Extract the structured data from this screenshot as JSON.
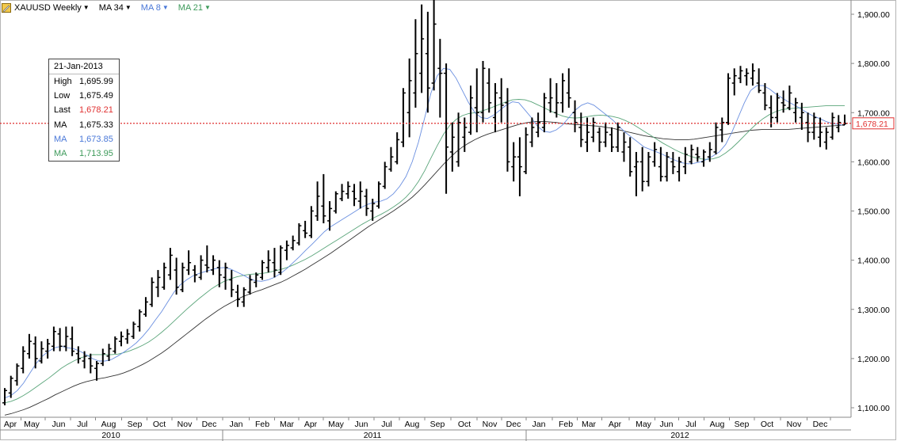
{
  "toolbar": {
    "symbol": "XAUUSD Weekly",
    "ma1": "MA 34",
    "ma2": "MA 8",
    "ma3": "MA 21",
    "logo_icon": "pencil-chart-icon",
    "dropdown_icon": "caret-down-icon"
  },
  "colors": {
    "price_bars": "#000000",
    "ma34": "#333333",
    "ma8": "#6a8fe0",
    "ma21": "#5aa57a",
    "last_price": "#e03030",
    "ma8_text": "#4a78d8",
    "ma21_text": "#3d9a5a"
  },
  "info_box": {
    "date": "21-Jan-2013",
    "rows": [
      {
        "label": "High",
        "value": "1,695.99"
      },
      {
        "label": "Low",
        "value": "1,675.49"
      },
      {
        "label": "Last",
        "value": "1,678.21"
      },
      {
        "label": "MA",
        "value": "1,675.33"
      },
      {
        "label": "MA",
        "value": "1,673.85"
      },
      {
        "label": "MA",
        "value": "1,713.95"
      }
    ]
  },
  "chart_data": {
    "type": "ohlc",
    "title": "XAUUSD Weekly",
    "last_price_label": "1,678.21",
    "y_ticks": [
      "1,100.00",
      "1,200.00",
      "1,300.00",
      "1,400.00",
      "1,500.00",
      "1,600.00",
      "1,700.00",
      "1,800.00",
      "1,900.00"
    ],
    "y_tick_values": [
      1100,
      1200,
      1300,
      1400,
      1500,
      1600,
      1700,
      1800,
      1900
    ],
    "ylim": [
      1090,
      1930
    ],
    "last_price": 1678.21,
    "months": [
      "Apr",
      "May",
      "Jun",
      "Jul",
      "Aug",
      "Sep",
      "Oct",
      "Nov",
      "Dec",
      "Jan",
      "Feb",
      "Mar",
      "Apr",
      "May",
      "Jun",
      "Jul",
      "Aug",
      "Sep",
      "Oct",
      "Nov",
      "Dec",
      "Jan",
      "Feb",
      "Mar",
      "Apr",
      "May",
      "Jun",
      "Jul",
      "Aug",
      "Sep",
      "Oct",
      "Nov",
      "Dec"
    ],
    "years": [
      "2010",
      "2011",
      "2012"
    ],
    "bars": [
      [
        1110,
        1140,
        1105,
        1135
      ],
      [
        1130,
        1165,
        1120,
        1160
      ],
      [
        1155,
        1190,
        1145,
        1185
      ],
      [
        1180,
        1225,
        1170,
        1215
      ],
      [
        1210,
        1250,
        1200,
        1235
      ],
      [
        1230,
        1245,
        1180,
        1200
      ],
      [
        1195,
        1235,
        1190,
        1220
      ],
      [
        1215,
        1240,
        1200,
        1230
      ],
      [
        1225,
        1265,
        1215,
        1255
      ],
      [
        1250,
        1262,
        1215,
        1225
      ],
      [
        1225,
        1265,
        1215,
        1245
      ],
      [
        1240,
        1265,
        1205,
        1215
      ],
      [
        1210,
        1225,
        1190,
        1200
      ],
      [
        1195,
        1215,
        1180,
        1205
      ],
      [
        1200,
        1210,
        1170,
        1185
      ],
      [
        1180,
        1195,
        1155,
        1190
      ],
      [
        1190,
        1220,
        1185,
        1210
      ],
      [
        1205,
        1230,
        1195,
        1220
      ],
      [
        1215,
        1245,
        1210,
        1240
      ],
      [
        1235,
        1255,
        1225,
        1245
      ],
      [
        1240,
        1260,
        1230,
        1250
      ],
      [
        1245,
        1275,
        1240,
        1270
      ],
      [
        1265,
        1300,
        1255,
        1295
      ],
      [
        1290,
        1325,
        1285,
        1315
      ],
      [
        1310,
        1365,
        1305,
        1355
      ],
      [
        1345,
        1380,
        1325,
        1365
      ],
      [
        1345,
        1395,
        1340,
        1385
      ],
      [
        1370,
        1425,
        1360,
        1410
      ],
      [
        1380,
        1405,
        1330,
        1345
      ],
      [
        1340,
        1395,
        1335,
        1385
      ],
      [
        1380,
        1420,
        1370,
        1395
      ],
      [
        1380,
        1390,
        1355,
        1370
      ],
      [
        1365,
        1410,
        1360,
        1400
      ],
      [
        1390,
        1430,
        1375,
        1385
      ],
      [
        1380,
        1410,
        1370,
        1400
      ],
      [
        1385,
        1400,
        1345,
        1370
      ],
      [
        1365,
        1395,
        1340,
        1385
      ],
      [
        1360,
        1380,
        1325,
        1340
      ],
      [
        1335,
        1350,
        1305,
        1320
      ],
      [
        1315,
        1345,
        1305,
        1340
      ],
      [
        1335,
        1370,
        1330,
        1360
      ],
      [
        1355,
        1375,
        1345,
        1370
      ],
      [
        1365,
        1400,
        1360,
        1395
      ],
      [
        1385,
        1420,
        1375,
        1400
      ],
      [
        1395,
        1425,
        1365,
        1380
      ],
      [
        1375,
        1430,
        1370,
        1425
      ],
      [
        1420,
        1440,
        1400,
        1430
      ],
      [
        1425,
        1450,
        1420,
        1440
      ],
      [
        1435,
        1475,
        1430,
        1470
      ],
      [
        1460,
        1480,
        1445,
        1455
      ],
      [
        1450,
        1510,
        1445,
        1500
      ],
      [
        1490,
        1560,
        1480,
        1530
      ],
      [
        1510,
        1575,
        1475,
        1490
      ],
      [
        1480,
        1520,
        1460,
        1505
      ],
      [
        1500,
        1540,
        1495,
        1535
      ],
      [
        1525,
        1555,
        1520,
        1540
      ],
      [
        1535,
        1560,
        1525,
        1550
      ],
      [
        1540,
        1555,
        1510,
        1525
      ],
      [
        1520,
        1560,
        1505,
        1540
      ],
      [
        1530,
        1545,
        1490,
        1505
      ],
      [
        1500,
        1525,
        1480,
        1515
      ],
      [
        1510,
        1560,
        1505,
        1555
      ],
      [
        1550,
        1600,
        1545,
        1590
      ],
      [
        1585,
        1630,
        1580,
        1610
      ],
      [
        1600,
        1660,
        1595,
        1645
      ],
      [
        1640,
        1750,
        1630,
        1740
      ],
      [
        1700,
        1810,
        1650,
        1765
      ],
      [
        1740,
        1890,
        1710,
        1820
      ],
      [
        1780,
        1920,
        1740,
        1850
      ],
      [
        1820,
        1905,
        1700,
        1750
      ],
      [
        1760,
        1930,
        1745,
        1880
      ],
      [
        1790,
        1850,
        1690,
        1780
      ],
      [
        1780,
        1800,
        1535,
        1630
      ],
      [
        1620,
        1680,
        1580,
        1650
      ],
      [
        1600,
        1700,
        1590,
        1680
      ],
      [
        1650,
        1690,
        1620,
        1670
      ],
      [
        1660,
        1755,
        1655,
        1730
      ],
      [
        1710,
        1790,
        1660,
        1700
      ],
      [
        1700,
        1805,
        1680,
        1790
      ],
      [
        1760,
        1790,
        1700,
        1720
      ],
      [
        1690,
        1760,
        1660,
        1740
      ],
      [
        1730,
        1770,
        1680,
        1715
      ],
      [
        1720,
        1750,
        1580,
        1600
      ],
      [
        1590,
        1640,
        1560,
        1610
      ],
      [
        1610,
        1650,
        1530,
        1590
      ],
      [
        1580,
        1670,
        1575,
        1655
      ],
      [
        1640,
        1690,
        1630,
        1670
      ],
      [
        1660,
        1700,
        1650,
        1680
      ],
      [
        1670,
        1740,
        1660,
        1730
      ],
      [
        1720,
        1770,
        1700,
        1730
      ],
      [
        1700,
        1760,
        1690,
        1720
      ],
      [
        1720,
        1780,
        1700,
        1765
      ],
      [
        1740,
        1790,
        1710,
        1730
      ],
      [
        1700,
        1725,
        1660,
        1680
      ],
      [
        1670,
        1700,
        1630,
        1645
      ],
      [
        1640,
        1690,
        1620,
        1660
      ],
      [
        1650,
        1690,
        1640,
        1680
      ],
      [
        1660,
        1670,
        1620,
        1640
      ],
      [
        1640,
        1680,
        1630,
        1660
      ],
      [
        1655,
        1670,
        1620,
        1630
      ],
      [
        1630,
        1680,
        1620,
        1670
      ],
      [
        1620,
        1660,
        1600,
        1640
      ],
      [
        1630,
        1650,
        1570,
        1580
      ],
      [
        1590,
        1620,
        1530,
        1600
      ],
      [
        1600,
        1630,
        1540,
        1560
      ],
      [
        1560,
        1620,
        1550,
        1610
      ],
      [
        1600,
        1640,
        1590,
        1625
      ],
      [
        1590,
        1630,
        1560,
        1570
      ],
      [
        1570,
        1620,
        1560,
        1610
      ],
      [
        1600,
        1620,
        1575,
        1590
      ],
      [
        1580,
        1610,
        1560,
        1600
      ],
      [
        1590,
        1630,
        1575,
        1615
      ],
      [
        1600,
        1635,
        1595,
        1625
      ],
      [
        1615,
        1630,
        1600,
        1610
      ],
      [
        1600,
        1625,
        1590,
        1620
      ],
      [
        1610,
        1640,
        1600,
        1625
      ],
      [
        1620,
        1680,
        1615,
        1670
      ],
      [
        1665,
        1690,
        1640,
        1680
      ],
      [
        1680,
        1780,
        1675,
        1770
      ],
      [
        1760,
        1790,
        1735,
        1775
      ],
      [
        1770,
        1795,
        1760,
        1785
      ],
      [
        1775,
        1790,
        1755,
        1780
      ],
      [
        1770,
        1800,
        1755,
        1785
      ],
      [
        1760,
        1790,
        1740,
        1745
      ],
      [
        1740,
        1760,
        1705,
        1715
      ],
      [
        1710,
        1735,
        1670,
        1690
      ],
      [
        1690,
        1740,
        1680,
        1730
      ],
      [
        1720,
        1745,
        1700,
        1715
      ],
      [
        1710,
        1755,
        1705,
        1740
      ],
      [
        1700,
        1730,
        1680,
        1720
      ],
      [
        1690,
        1720,
        1665,
        1700
      ],
      [
        1680,
        1700,
        1640,
        1660
      ],
      [
        1660,
        1700,
        1645,
        1690
      ],
      [
        1650,
        1690,
        1630,
        1660
      ],
      [
        1640,
        1670,
        1625,
        1660
      ],
      [
        1650,
        1700,
        1645,
        1690
      ],
      [
        1670,
        1695,
        1660,
        1680
      ],
      [
        1675,
        1696,
        1675,
        1678
      ]
    ],
    "ma8": [
      1120,
      1125,
      1135,
      1150,
      1170,
      1190,
      1205,
      1215,
      1222,
      1225,
      1222,
      1220,
      1215,
      1208,
      1200,
      1195,
      1195,
      1198,
      1205,
      1213,
      1222,
      1232,
      1245,
      1260,
      1278,
      1295,
      1315,
      1335,
      1350,
      1360,
      1368,
      1373,
      1377,
      1381,
      1384,
      1385,
      1382,
      1376,
      1370,
      1363,
      1358,
      1357,
      1360,
      1365,
      1373,
      1383,
      1395,
      1407,
      1420,
      1432,
      1445,
      1458,
      1468,
      1476,
      1484,
      1492,
      1500,
      1508,
      1514,
      1518,
      1520,
      1525,
      1535,
      1550,
      1570,
      1600,
      1640,
      1690,
      1740,
      1775,
      1790,
      1788,
      1770,
      1745,
      1720,
      1700,
      1690,
      1688,
      1695,
      1705,
      1715,
      1722,
      1720,
      1705,
      1690,
      1672,
      1662,
      1660,
      1665,
      1675,
      1690,
      1705,
      1715,
      1720,
      1715,
      1705,
      1695,
      1685,
      1672,
      1660,
      1650,
      1640,
      1630,
      1625,
      1620,
      1615,
      1608,
      1603,
      1598,
      1596,
      1597,
      1600,
      1605,
      1612,
      1620,
      1635,
      1660,
      1690,
      1720,
      1745,
      1755,
      1755,
      1748,
      1738,
      1730,
      1722,
      1715,
      1708,
      1700,
      1693,
      1688,
      1682,
      1678,
      1676,
      1674
    ],
    "ma21": [
      1110,
      1113,
      1118,
      1125,
      1133,
      1142,
      1151,
      1160,
      1170,
      1180,
      1188,
      1195,
      1201,
      1205,
      1208,
      1208,
      1208,
      1208,
      1209,
      1212,
      1216,
      1221,
      1227,
      1234,
      1243,
      1253,
      1264,
      1276,
      1288,
      1300,
      1311,
      1322,
      1332,
      1342,
      1350,
      1357,
      1362,
      1366,
      1369,
      1371,
      1372,
      1373,
      1375,
      1378,
      1381,
      1385,
      1390,
      1396,
      1402,
      1409,
      1417,
      1425,
      1433,
      1441,
      1449,
      1457,
      1465,
      1473,
      1480,
      1487,
      1493,
      1500,
      1508,
      1517,
      1528,
      1542,
      1560,
      1582,
      1608,
      1633,
      1656,
      1674,
      1686,
      1694,
      1698,
      1700,
      1703,
      1707,
      1712,
      1717,
      1722,
      1726,
      1727,
      1726,
      1722,
      1716,
      1710,
      1704,
      1698,
      1693,
      1690,
      1689,
      1690,
      1692,
      1694,
      1695,
      1694,
      1692,
      1689,
      1684,
      1678,
      1670,
      1662,
      1654,
      1646,
      1638,
      1631,
      1624,
      1618,
      1613,
      1609,
      1606,
      1605,
      1606,
      1610,
      1618,
      1628,
      1640,
      1653,
      1666,
      1678,
      1688,
      1696,
      1702,
      1706,
      1708,
      1709,
      1710,
      1711,
      1712,
      1713,
      1714,
      1714,
      1714,
      1714
    ],
    "ma34": [
      1085,
      1088,
      1092,
      1096,
      1101,
      1107,
      1113,
      1119,
      1126,
      1132,
      1138,
      1144,
      1149,
      1153,
      1156,
      1159,
      1161,
      1164,
      1167,
      1171,
      1176,
      1182,
      1188,
      1195,
      1203,
      1211,
      1220,
      1230,
      1240,
      1250,
      1260,
      1270,
      1280,
      1289,
      1298,
      1306,
      1313,
      1320,
      1326,
      1331,
      1336,
      1340,
      1345,
      1350,
      1355,
      1361,
      1368,
      1375,
      1382,
      1390,
      1398,
      1406,
      1414,
      1423,
      1432,
      1441,
      1450,
      1459,
      1468,
      1476,
      1484,
      1492,
      1500,
      1509,
      1518,
      1528,
      1540,
      1553,
      1567,
      1581,
      1595,
      1608,
      1620,
      1630,
      1638,
      1645,
      1651,
      1656,
      1660,
      1664,
      1668,
      1672,
      1676,
      1679,
      1681,
      1682,
      1682,
      1681,
      1680,
      1678,
      1677,
      1676,
      1675,
      1674,
      1673,
      1672,
      1670,
      1668,
      1665,
      1662,
      1659,
      1656,
      1653,
      1651,
      1649,
      1647,
      1646,
      1645,
      1645,
      1645,
      1646,
      1648,
      1650,
      1652,
      1654,
      1656,
      1658,
      1660,
      1662,
      1664,
      1665,
      1666,
      1666,
      1666,
      1666,
      1666,
      1667,
      1668,
      1669,
      1670,
      1671,
      1672,
      1673,
      1674,
      1675
    ]
  }
}
